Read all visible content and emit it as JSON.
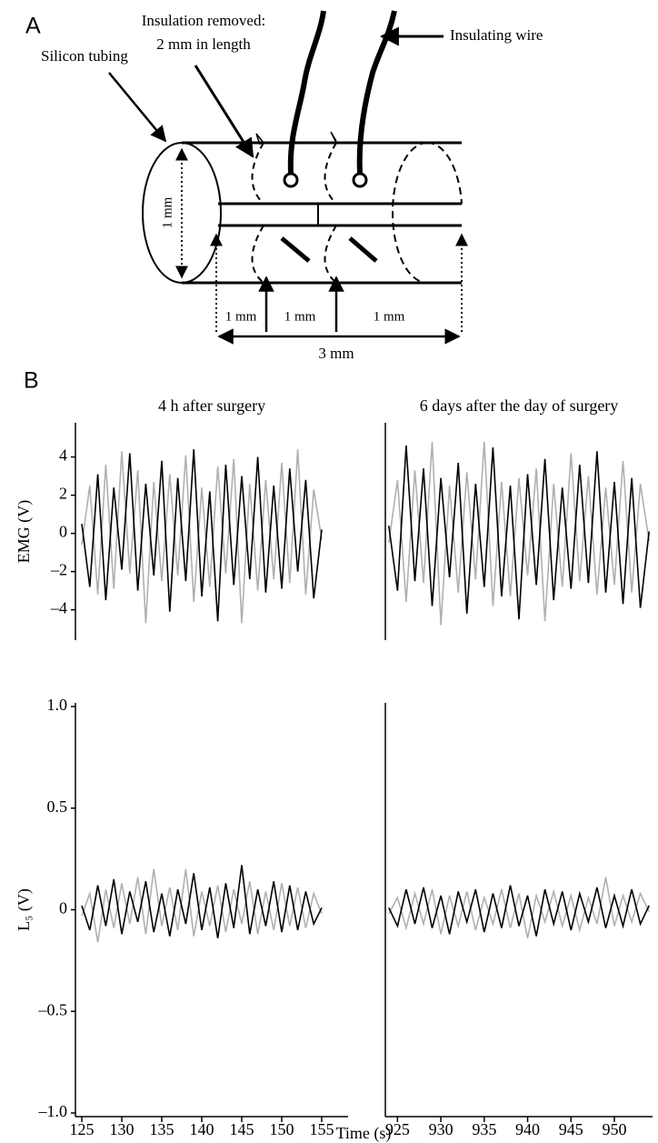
{
  "panel_a": {
    "label": "A",
    "callouts": {
      "insulation": [
        "Insulation removed:",
        "2 mm in length"
      ],
      "wire": "Insulating wire",
      "tubing": "Silicon tubing"
    },
    "dimensions": {
      "diameter": "1 mm",
      "segments": [
        "1 mm",
        "1 mm",
        "1 mm"
      ],
      "total": "3 mm"
    }
  },
  "panel_b": {
    "label": "B",
    "x_label": "Time (s)"
  },
  "chart_data": [
    {
      "type": "line",
      "title": "4 h after surgery",
      "y_label": "EMG (V)",
      "x": [
        125,
        126,
        127,
        128,
        129,
        130,
        131,
        132,
        133,
        134,
        135,
        136,
        137,
        138,
        139,
        140,
        141,
        142,
        143,
        144,
        145,
        146,
        147,
        148,
        149,
        150,
        151,
        152,
        153,
        154,
        155
      ],
      "xlim": [
        124.2,
        158.3
      ],
      "ylim": [
        -5.4,
        5.6
      ],
      "yticks": [
        4,
        2,
        0,
        {
          "value": -2,
          "label": "–2"
        },
        {
          "value": -4,
          "label": "–4"
        }
      ],
      "series": [
        {
          "color": "#b0b0b0",
          "values": [
            -0.6,
            2.5,
            -3.2,
            3.6,
            -2.9,
            4.3,
            -2.1,
            3.3,
            -4.7,
            2.7,
            -2.5,
            3.1,
            -2.2,
            4.1,
            -3.6,
            2.4,
            -2.8,
            3.5,
            -2.1,
            3.9,
            -4.7,
            2.6,
            -3.0,
            2.8,
            -2.4,
            3.7,
            -2.6,
            4.4,
            -3.2,
            2.3,
            -0.3
          ]
        },
        {
          "color": "#000000",
          "values": [
            0.5,
            -2.8,
            3.1,
            -3.5,
            2.4,
            -1.9,
            4.2,
            -3.0,
            2.6,
            -2.2,
            3.8,
            -4.1,
            2.9,
            -2.5,
            4.4,
            -3.3,
            2.2,
            -4.6,
            3.6,
            -2.7,
            3.0,
            -2.4,
            4.0,
            -3.1,
            2.5,
            -2.9,
            3.4,
            -2.0,
            2.8,
            -3.4,
            0.2
          ]
        }
      ]
    },
    {
      "type": "line",
      "title": "6 days after the day of surgery",
      "x": [
        924,
        925,
        926,
        927,
        928,
        929,
        930,
        931,
        932,
        933,
        934,
        935,
        936,
        937,
        938,
        939,
        940,
        941,
        942,
        943,
        944,
        945,
        946,
        947,
        948,
        949,
        950,
        951,
        952,
        953,
        954
      ],
      "xlim": [
        923.6,
        954.4
      ],
      "ylim": [
        -5.4,
        5.6
      ],
      "series": [
        {
          "color": "#b0b0b0",
          "values": [
            -0.5,
            2.8,
            -3.6,
            3.3,
            -2.6,
            4.8,
            -4.8,
            2.5,
            -3.1,
            3.2,
            -2.4,
            4.8,
            -3.8,
            2.7,
            -3.3,
            2.9,
            -2.2,
            3.4,
            -4.6,
            2.6,
            -2.8,
            4.2,
            -2.5,
            3.0,
            -3.2,
            2.4,
            -2.7,
            3.8,
            -3.1,
            2.6,
            -0.4
          ]
        },
        {
          "color": "#000000",
          "values": [
            0.4,
            -3.0,
            4.6,
            -2.5,
            3.4,
            -3.8,
            2.9,
            -2.3,
            3.7,
            -4.2,
            2.6,
            -2.8,
            4.5,
            -3.3,
            2.5,
            -4.5,
            3.1,
            -2.7,
            3.9,
            -3.5,
            2.4,
            -2.9,
            3.6,
            -2.6,
            4.3,
            -3.1,
            2.7,
            -3.7,
            2.9,
            -3.9,
            0.1
          ]
        }
      ]
    },
    {
      "type": "line",
      "y_label": "L₅ (V)",
      "x": [
        125,
        126,
        127,
        128,
        129,
        130,
        131,
        132,
        133,
        134,
        135,
        136,
        137,
        138,
        139,
        140,
        141,
        142,
        143,
        144,
        145,
        146,
        147,
        148,
        149,
        150,
        151,
        152,
        153,
        154,
        155
      ],
      "xlim": [
        124.2,
        158.3
      ],
      "ylim": [
        -1.0,
        1.0
      ],
      "xticks": [
        125,
        130,
        135,
        140,
        145,
        150,
        155
      ],
      "yticks": [
        {
          "value": 1.0,
          "label": "1.0"
        },
        0.5,
        0,
        {
          "value": -0.5,
          "label": "–0.5"
        },
        {
          "value": -1.0,
          "label": "–1.0"
        }
      ],
      "series": [
        {
          "color": "#b0b0b0",
          "values": [
            -0.03,
            0.08,
            -0.16,
            0.1,
            -0.09,
            0.13,
            -0.07,
            0.16,
            -0.12,
            0.2,
            -0.08,
            0.11,
            -0.1,
            0.2,
            -0.13,
            0.09,
            -0.08,
            0.12,
            -0.11,
            0.1,
            -0.07,
            0.14,
            -0.12,
            0.09,
            -0.1,
            0.13,
            -0.08,
            0.11,
            -0.09,
            0.08,
            -0.02
          ]
        },
        {
          "color": "#000000",
          "values": [
            0.02,
            -0.1,
            0.12,
            -0.08,
            0.15,
            -0.12,
            0.09,
            -0.06,
            0.14,
            -0.11,
            0.08,
            -0.13,
            0.1,
            -0.07,
            0.18,
            -0.1,
            0.11,
            -0.14,
            0.13,
            -0.09,
            0.22,
            -0.12,
            0.1,
            -0.08,
            0.14,
            -0.11,
            0.12,
            -0.1,
            0.09,
            -0.07,
            0.01
          ]
        }
      ]
    },
    {
      "type": "line",
      "x": [
        924,
        925,
        926,
        927,
        928,
        929,
        930,
        931,
        932,
        933,
        934,
        935,
        936,
        937,
        938,
        939,
        940,
        941,
        942,
        943,
        944,
        945,
        946,
        947,
        948,
        949,
        950,
        951,
        952,
        953,
        954
      ],
      "xlim": [
        923.6,
        954.4
      ],
      "ylim": [
        -1.0,
        1.0
      ],
      "xticks": [
        925,
        930,
        935,
        940,
        945,
        950
      ],
      "series": [
        {
          "color": "#b0b0b0",
          "values": [
            -0.02,
            0.06,
            -0.09,
            0.08,
            -0.07,
            0.1,
            -0.12,
            0.07,
            -0.08,
            0.09,
            -0.1,
            0.06,
            -0.07,
            0.1,
            -0.09,
            0.08,
            -0.14,
            0.07,
            -0.06,
            0.09,
            -0.08,
            0.07,
            -0.1,
            0.06,
            -0.07,
            0.16,
            -0.08,
            0.07,
            -0.06,
            0.08,
            -0.01
          ]
        },
        {
          "color": "#000000",
          "values": [
            0.01,
            -0.08,
            0.1,
            -0.07,
            0.11,
            -0.09,
            0.07,
            -0.12,
            0.09,
            -0.06,
            0.1,
            -0.11,
            0.08,
            -0.09,
            0.12,
            -0.08,
            0.07,
            -0.13,
            0.1,
            -0.07,
            0.09,
            -0.1,
            0.08,
            -0.06,
            0.11,
            -0.09,
            0.07,
            -0.08,
            0.1,
            -0.07,
            0.02
          ]
        }
      ]
    }
  ]
}
